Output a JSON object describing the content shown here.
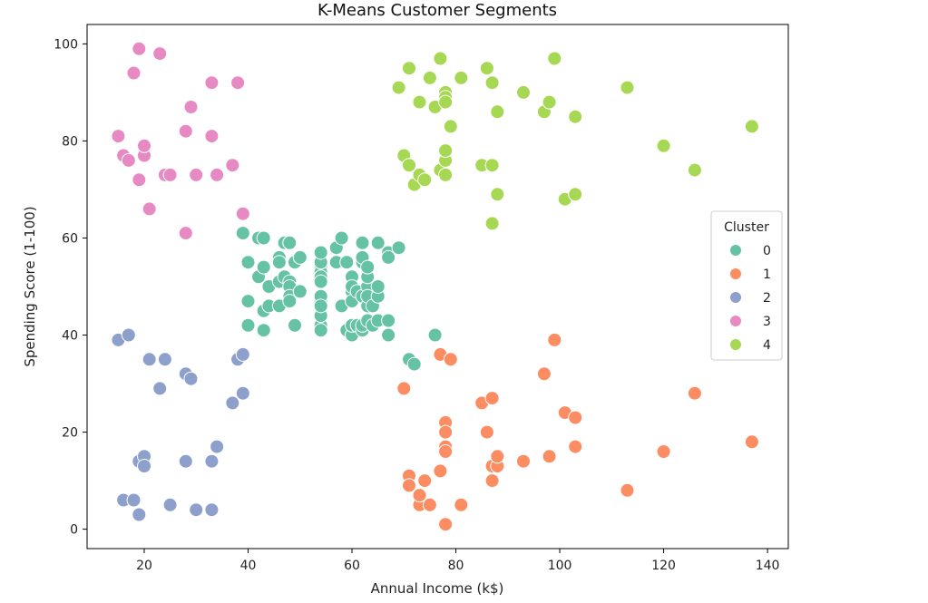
{
  "chart_data": {
    "type": "scatter",
    "title": "K-Means Customer Segments",
    "xlabel": "Annual Income (k$)",
    "ylabel": "Spending Score (1-100)",
    "xlim": [
      9,
      144
    ],
    "ylim": [
      -4,
      104
    ],
    "xticks": [
      20,
      40,
      60,
      80,
      100,
      120,
      140
    ],
    "yticks": [
      0,
      20,
      40,
      60,
      80,
      100
    ],
    "grid": false,
    "legend": {
      "title": "Cluster",
      "placement": "right"
    },
    "series": [
      {
        "name": "0",
        "color": "#66c2a5",
        "points": [
          [
            39,
            61
          ],
          [
            40,
            55
          ],
          [
            40,
            47
          ],
          [
            40,
            42
          ],
          [
            42,
            52
          ],
          [
            42,
            60
          ],
          [
            43,
            60
          ],
          [
            43,
            54
          ],
          [
            43,
            45
          ],
          [
            43,
            41
          ],
          [
            44,
            50
          ],
          [
            44,
            46
          ],
          [
            46,
            51
          ],
          [
            46,
            46
          ],
          [
            46,
            56
          ],
          [
            46,
            55
          ],
          [
            47,
            52
          ],
          [
            47,
            59
          ],
          [
            48,
            51
          ],
          [
            48,
            59
          ],
          [
            48,
            50
          ],
          [
            48,
            48
          ],
          [
            48,
            59
          ],
          [
            48,
            47
          ],
          [
            49,
            55
          ],
          [
            49,
            42
          ],
          [
            50,
            49
          ],
          [
            50,
            56
          ],
          [
            54,
            47
          ],
          [
            54,
            54
          ],
          [
            54,
            53
          ],
          [
            54,
            48
          ],
          [
            54,
            52
          ],
          [
            54,
            42
          ],
          [
            54,
            51
          ],
          [
            54,
            55
          ],
          [
            54,
            41
          ],
          [
            54,
            44
          ],
          [
            54,
            57
          ],
          [
            54,
            46
          ],
          [
            57,
            58
          ],
          [
            57,
            55
          ],
          [
            58,
            60
          ],
          [
            58,
            46
          ],
          [
            59,
            55
          ],
          [
            59,
            41
          ],
          [
            60,
            49
          ],
          [
            60,
            40
          ],
          [
            60,
            42
          ],
          [
            60,
            52
          ],
          [
            60,
            47
          ],
          [
            60,
            50
          ],
          [
            61,
            42
          ],
          [
            61,
            49
          ],
          [
            62,
            41
          ],
          [
            62,
            48
          ],
          [
            62,
            59
          ],
          [
            62,
            55
          ],
          [
            62,
            56
          ],
          [
            62,
            42
          ],
          [
            63,
            50
          ],
          [
            63,
            46
          ],
          [
            63,
            43
          ],
          [
            63,
            48
          ],
          [
            63,
            52
          ],
          [
            63,
            54
          ],
          [
            64,
            42
          ],
          [
            64,
            46
          ],
          [
            65,
            48
          ],
          [
            65,
            50
          ],
          [
            65,
            43
          ],
          [
            65,
            59
          ],
          [
            67,
            43
          ],
          [
            67,
            57
          ],
          [
            67,
            56
          ],
          [
            67,
            40
          ],
          [
            69,
            58
          ],
          [
            71,
            35
          ],
          [
            72,
            34
          ],
          [
            76,
            40
          ]
        ]
      },
      {
        "name": "1",
        "color": "#fc8d62",
        "points": [
          [
            70,
            29
          ],
          [
            71,
            11
          ],
          [
            71,
            9
          ],
          [
            73,
            5
          ],
          [
            73,
            7
          ],
          [
            74,
            10
          ],
          [
            75,
            5
          ],
          [
            77,
            12
          ],
          [
            77,
            36
          ],
          [
            78,
            22
          ],
          [
            78,
            17
          ],
          [
            78,
            20
          ],
          [
            78,
            16
          ],
          [
            78,
            1
          ],
          [
            79,
            35
          ],
          [
            81,
            5
          ],
          [
            85,
            26
          ],
          [
            86,
            20
          ],
          [
            87,
            27
          ],
          [
            87,
            13
          ],
          [
            87,
            10
          ],
          [
            88,
            13
          ],
          [
            88,
            15
          ],
          [
            93,
            14
          ],
          [
            97,
            32
          ],
          [
            98,
            15
          ],
          [
            99,
            39
          ],
          [
            101,
            24
          ],
          [
            103,
            17
          ],
          [
            103,
            23
          ],
          [
            113,
            8
          ],
          [
            120,
            16
          ],
          [
            126,
            28
          ],
          [
            137,
            18
          ]
        ]
      },
      {
        "name": "2",
        "color": "#8da0cb",
        "points": [
          [
            15,
            39
          ],
          [
            16,
            6
          ],
          [
            17,
            40
          ],
          [
            18,
            6
          ],
          [
            19,
            3
          ],
          [
            19,
            14
          ],
          [
            20,
            15
          ],
          [
            20,
            13
          ],
          [
            21,
            35
          ],
          [
            23,
            29
          ],
          [
            24,
            35
          ],
          [
            25,
            5
          ],
          [
            28,
            14
          ],
          [
            28,
            32
          ],
          [
            29,
            31
          ],
          [
            30,
            4
          ],
          [
            33,
            4
          ],
          [
            33,
            14
          ],
          [
            34,
            17
          ],
          [
            37,
            26
          ],
          [
            38,
            35
          ],
          [
            39,
            36
          ],
          [
            39,
            28
          ]
        ]
      },
      {
        "name": "3",
        "color": "#e78ac3",
        "points": [
          [
            15,
            81
          ],
          [
            16,
            77
          ],
          [
            17,
            76
          ],
          [
            18,
            94
          ],
          [
            19,
            72
          ],
          [
            19,
            99
          ],
          [
            20,
            77
          ],
          [
            20,
            79
          ],
          [
            21,
            66
          ],
          [
            23,
            98
          ],
          [
            24,
            73
          ],
          [
            25,
            73
          ],
          [
            28,
            82
          ],
          [
            28,
            61
          ],
          [
            29,
            87
          ],
          [
            30,
            73
          ],
          [
            33,
            92
          ],
          [
            33,
            81
          ],
          [
            34,
            73
          ],
          [
            37,
            75
          ],
          [
            38,
            92
          ],
          [
            39,
            65
          ]
        ]
      },
      {
        "name": "4",
        "color": "#a6d854",
        "points": [
          [
            69,
            91
          ],
          [
            70,
            77
          ],
          [
            71,
            95
          ],
          [
            71,
            75
          ],
          [
            72,
            71
          ],
          [
            73,
            88
          ],
          [
            73,
            73
          ],
          [
            74,
            72
          ],
          [
            75,
            93
          ],
          [
            76,
            87
          ],
          [
            77,
            97
          ],
          [
            77,
            74
          ],
          [
            78,
            90
          ],
          [
            78,
            76
          ],
          [
            78,
            89
          ],
          [
            78,
            78
          ],
          [
            78,
            73
          ],
          [
            78,
            88
          ],
          [
            79,
            83
          ],
          [
            81,
            93
          ],
          [
            85,
            75
          ],
          [
            86,
            95
          ],
          [
            87,
            63
          ],
          [
            87,
            75
          ],
          [
            87,
            92
          ],
          [
            88,
            86
          ],
          [
            88,
            69
          ],
          [
            93,
            90
          ],
          [
            97,
            86
          ],
          [
            98,
            88
          ],
          [
            99,
            97
          ],
          [
            101,
            68
          ],
          [
            103,
            85
          ],
          [
            103,
            69
          ],
          [
            113,
            91
          ],
          [
            120,
            79
          ],
          [
            126,
            74
          ],
          [
            137,
            83
          ]
        ]
      }
    ]
  }
}
